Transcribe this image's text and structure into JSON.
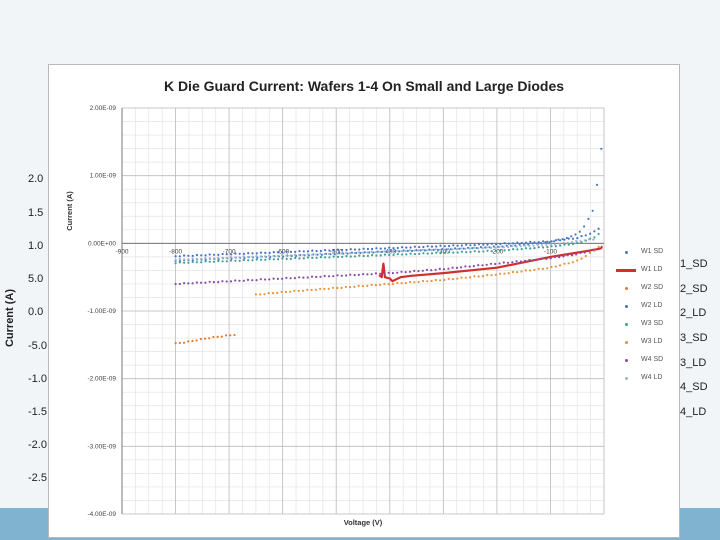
{
  "underlay": {
    "ylabel": "Current (A)",
    "ticks": [
      "2.0",
      "1.5",
      "1.0",
      "5.0",
      "0.0",
      "-5.0",
      "-1.0",
      "-1.5",
      "-2.0",
      "-2.5"
    ],
    "legend": [
      "1_SD",
      "2_SD",
      "2_LD",
      "3_SD",
      "3_LD",
      "4_SD",
      "4_LD"
    ]
  },
  "chart_data": {
    "type": "scatter",
    "title": "K Die Guard Current: Wafers 1-4 On Small and Large Diodes",
    "xlabel": "Voltage (V)",
    "ylabel": "Current (A)",
    "xlim": [
      -900,
      0
    ],
    "ylim": [
      -4e-09,
      2e-09
    ],
    "x_ticks": [
      "-900",
      "-800",
      "-700",
      "-600",
      "-500",
      "-400",
      "-300",
      "-200",
      "-100"
    ],
    "y_ticks": [
      "2.00E-09",
      "1.00E-09",
      "0.00E+00",
      "-1.00E-09",
      "-2.00E-09",
      "-3.00E-09",
      "-4.00E-09"
    ],
    "grid": true,
    "legend_position": "right",
    "series": [
      {
        "name": "W1 SD",
        "color": "#4a7bc8",
        "marker": "dot",
        "x": [
          -800,
          -700,
          -600,
          -500,
          -400,
          -300,
          -200,
          -150,
          -100,
          -60,
          -40,
          -30,
          -20,
          -15,
          -10,
          -5
        ],
        "y": [
          -2.6e-10,
          -2.2e-10,
          -1.9e-10,
          -1.55e-10,
          -1.2e-10,
          -9e-11,
          -5e-11,
          -2e-11,
          2e-11,
          1e-10,
          2e-10,
          3.5e-10,
          5e-10,
          7e-10,
          1.1e-09,
          1.4e-09
        ]
      },
      {
        "name": "W1 LD",
        "color": "#d12e2e",
        "marker": "line",
        "x": [
          -420,
          -415,
          -412,
          -409,
          -400,
          -395,
          -390,
          -385,
          -380,
          -360,
          -300,
          -200,
          -150,
          -100,
          -60,
          -30,
          -15,
          -8,
          -5,
          -4,
          -3
        ],
        "y": [
          -4.7e-10,
          -5e-10,
          -3e-10,
          -5e-10,
          -5.2e-10,
          -5.6e-10,
          -5.4e-10,
          -5.2e-10,
          -5e-10,
          -4.8e-10,
          -4.4e-10,
          -3.6e-10,
          -2.8e-10,
          -2e-10,
          -1.5e-10,
          -1.1e-10,
          -9e-11,
          -8e-11,
          -7e-11,
          -5e-11,
          -5e-11
        ]
      },
      {
        "name": "W2 SD",
        "color": "#e07b30",
        "marker": "dot",
        "x": [
          -800,
          -780,
          -760,
          -740,
          -720,
          -700,
          -690
        ],
        "y": [
          -1.48e-09,
          -1.46e-09,
          -1.43e-09,
          -1.4e-09,
          -1.38e-09,
          -1.36e-09,
          -1.35e-09
        ]
      },
      {
        "name": "W2 LD",
        "color": "#4472c4",
        "marker": "dot",
        "x": [
          -800,
          -700,
          -600,
          -500,
          -400,
          -300,
          -200,
          -100,
          -50,
          -20,
          -10
        ],
        "y": [
          -1.9e-10,
          -1.6e-10,
          -1.3e-10,
          -1e-10,
          -7e-11,
          -4e-11,
          -1e-11,
          3e-11,
          8e-11,
          1.6e-10,
          2.2e-10
        ]
      },
      {
        "name": "W3 SD",
        "color": "#3fa090",
        "marker": "dot",
        "x": [
          -800,
          -700,
          -600,
          -500,
          -400,
          -300,
          -200,
          -100,
          -50,
          -20,
          -10
        ],
        "y": [
          -2.9e-10,
          -2.6e-10,
          -2.3e-10,
          -2e-10,
          -1.7e-10,
          -1.4e-10,
          -1.1e-10,
          -5e-11,
          0,
          8e-11,
          1.4e-10
        ]
      },
      {
        "name": "W3 LD",
        "color": "#e8923a",
        "marker": "dot",
        "x": [
          -650,
          -600,
          -500,
          -400,
          -300,
          -200,
          -100,
          -50,
          -20,
          -10
        ],
        "y": [
          -7.6e-10,
          -7.2e-10,
          -6.6e-10,
          -6e-10,
          -5.4e-10,
          -4.6e-10,
          -3.6e-10,
          -2.6e-10,
          -1.2e-10,
          -5e-11
        ]
      },
      {
        "name": "W4 SD",
        "color": "#8a4aa8",
        "marker": "dot",
        "x": [
          -800,
          -700,
          -600,
          -500,
          -400,
          -300,
          -200,
          -100,
          -50,
          -20
        ],
        "y": [
          -6e-10,
          -5.6e-10,
          -5.2e-10,
          -4.8e-10,
          -4.4e-10,
          -3.8e-10,
          -3e-10,
          -2.2e-10,
          -1.6e-10,
          -1e-10
        ]
      },
      {
        "name": "W4 LD",
        "color": "#9fb4d4",
        "marker": "dot",
        "x": [
          -800,
          -600,
          -400,
          -200,
          -100,
          -20
        ],
        "y": [
          -2.4e-10,
          -1.8e-10,
          -1.2e-10,
          -6e-11,
          -2e-11,
          6e-11
        ]
      }
    ]
  }
}
